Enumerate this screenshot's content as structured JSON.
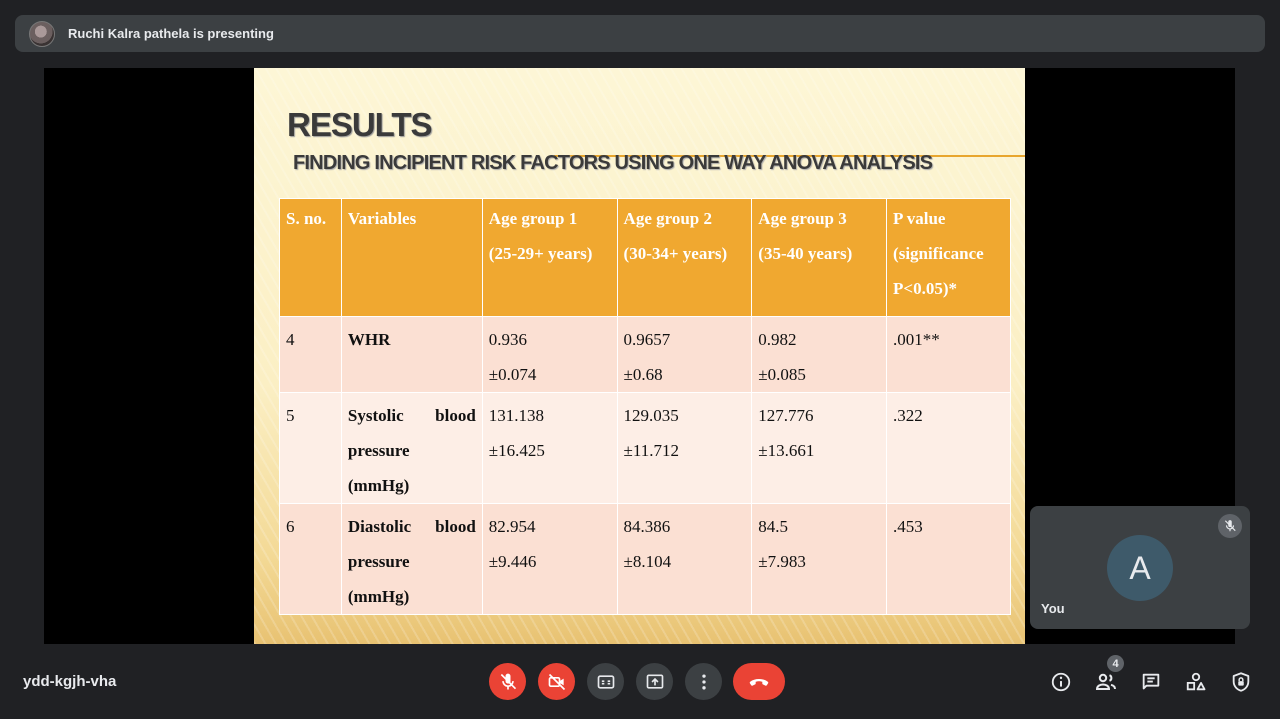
{
  "presenter_banner": {
    "text": "Ruchi Kalra pathela is presenting"
  },
  "slide": {
    "title": "RESULTS",
    "subtitle": "FINDING INCIPIENT RISK FACTORS USING ONE WAY ANOVA ANALYSIS",
    "table": {
      "headers": {
        "sno": "S. no.",
        "variables": "Variables",
        "ag1_line1": "Age group 1",
        "ag1_line2": "(25-29+ years)",
        "ag2_line1": "Age group 2",
        "ag2_line2": "(30-34+ years)",
        "ag3_line1": "Age group 3",
        "ag3_line2": "(35-40 years)",
        "p_line1": "P value",
        "p_line2": "(significance",
        "p_line3": "P<0.05)*"
      },
      "rows": [
        {
          "sno": "4",
          "var_line1": "WHR",
          "ag1_mean": "0.936",
          "ag1_sd": "±0.074",
          "ag2_mean": "0.9657",
          "ag2_sd": "±0.68",
          "ag3_mean": "0.982",
          "ag3_sd": "±0.085",
          "p": ".001**"
        },
        {
          "sno": "5",
          "var_w1": "Systolic",
          "var_w2": "blood",
          "var_line2": "pressure",
          "var_line3": "(mmHg)",
          "ag1_mean": "131.138",
          "ag1_sd": "±16.425",
          "ag2_mean": "129.035",
          "ag2_sd": "±11.712",
          "ag3_mean": "127.776",
          "ag3_sd": "±13.661",
          "p": ".322"
        },
        {
          "sno": "6",
          "var_w1": "Diastolic",
          "var_w2": "blood",
          "var_line2": "pressure",
          "var_line3": "(mmHg)",
          "ag1_mean": "82.954",
          "ag1_sd": "±9.446",
          "ag2_mean": "84.386",
          "ag2_sd": "±8.104",
          "ag3_mean": "84.5",
          "ag3_sd": "±7.983",
          "p": ".453"
        }
      ]
    }
  },
  "self_tile": {
    "avatar_letter": "A",
    "label": "You"
  },
  "bottom_bar": {
    "meeting_code": "ydd-kgjh-vha",
    "participants_count": "4"
  },
  "icons": {
    "banner_avatar": "presenter-avatar",
    "mic": "mic-off-icon",
    "camera": "camera-off-icon",
    "captions": "captions-icon",
    "present": "present-screen-icon",
    "more": "more-vert-icon",
    "hangup": "call-end-icon",
    "info": "info-icon",
    "people": "people-icon",
    "chat": "chat-icon",
    "activities": "activities-icon",
    "host": "host-controls-icon"
  },
  "colors": {
    "danger": "#ea4335",
    "control_gray": "#3c4043",
    "table_header": "#f0a830"
  }
}
